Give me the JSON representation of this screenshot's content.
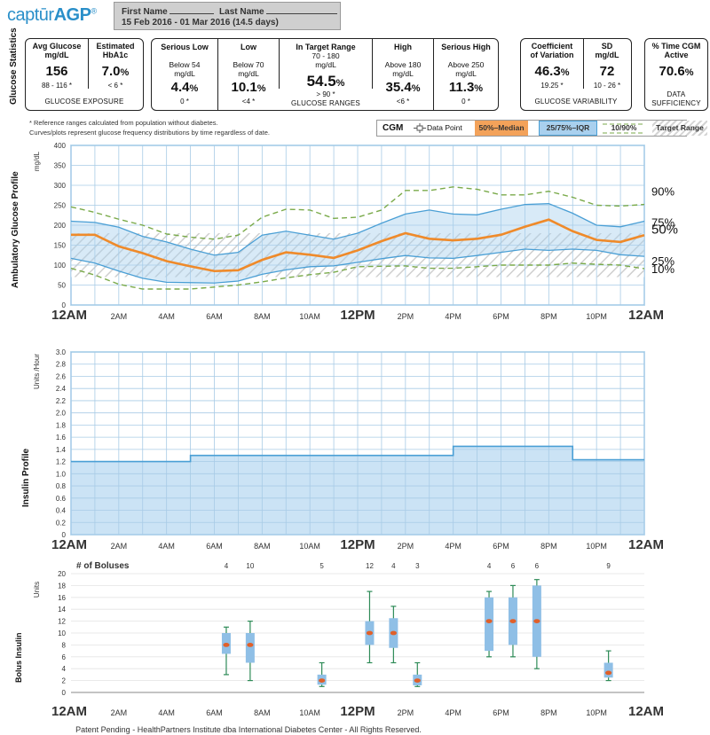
{
  "header": {
    "logo_prefix": "captūr",
    "logo_suffix": "AGP",
    "logo_mark": "®",
    "first_name_label": "First Name",
    "last_name_label": "Last Name",
    "date_range": "15 Feb 2016 - 01 Mar 2016  (14.5 days)"
  },
  "section_title": "Glucose Statistics",
  "glucose_exposure": {
    "avg_label": "Avg Glucose",
    "avg_unit": "mg/dL",
    "avg_value": "156",
    "avg_ref": "88 - 116 *",
    "a1c_label": "Estimated",
    "a1c_label2": "HbA1c",
    "a1c_value": "7.0",
    "a1c_unit": "%",
    "a1c_ref": "< 6 *",
    "footer": "GLUCOSE EXPOSURE"
  },
  "glucose_ranges": {
    "cols": [
      {
        "title": "Serious Low",
        "sub1": "Below 54",
        "sub2": "mg/dL",
        "value": "4.4",
        "unit": "%",
        "ref": "0 *"
      },
      {
        "title": "Low",
        "sub1": "Below 70",
        "sub2": "mg/dL",
        "value": "10.1",
        "unit": "%",
        "ref": "<4 *"
      },
      {
        "title": "In Target Range",
        "sub1": "70 - 180",
        "sub2": "mg/dL",
        "value": "54.5",
        "unit": "%",
        "ref": "> 90 *"
      },
      {
        "title": "High",
        "sub1": "Above 180",
        "sub2": "mg/dL",
        "value": "35.4",
        "unit": "%",
        "ref": "<6 *"
      },
      {
        "title": "Serious High",
        "sub1": "Above 250",
        "sub2": "mg/dL",
        "value": "11.3",
        "unit": "%",
        "ref": "0 *"
      }
    ],
    "footer": "GLUCOSE RANGES"
  },
  "glucose_variability": {
    "cv_label": "Coefficient",
    "cv_label2": "of Variation",
    "cv_value": "46.3",
    "cv_unit": "%",
    "cv_ref": "19.25 *",
    "sd_label": "SD",
    "sd_unit": "mg/dL",
    "sd_value": "72",
    "sd_ref": "10 - 26 *",
    "footer": "GLUCOSE VARIABILITY"
  },
  "data_sufficiency": {
    "label": "% Time CGM",
    "label2": "Active",
    "value": "70.6",
    "unit": "%",
    "footer": "DATA",
    "footer2": "SUFFICIENCY"
  },
  "footnote": {
    "line1": "* Reference ranges calculated from population without diabetes.",
    "line2": "Curves/plots represent glucose frequency distributions by time regardless of date."
  },
  "legend": {
    "cgm": "CGM",
    "data_point": "Data Point",
    "median": "50%–Median",
    "iqr": "25/75%–IQR",
    "p10_90": "10/90%",
    "target": "Target Range",
    "colors": {
      "median": "#ef8a2a",
      "iqr_fill": "#a9d0ee",
      "iqr_line": "#4a9fd5",
      "p10_90": "#7aaa4a",
      "median_bg": "#f3a25a"
    }
  },
  "panel_titles": {
    "agp": "Ambulatory Glucose Profile",
    "insulin": "Insulin Profile",
    "bolus1": "Bolus",
    "bolus2": "Insulin"
  },
  "footer": "Patent Pending -  HealthPartners Institute dba International Diabetes Center - All Rights Reserved.",
  "chart_data": [
    {
      "type": "line",
      "ylabel": "mg/dL",
      "ylim": [
        0,
        400
      ],
      "yticks": [
        0,
        50,
        100,
        150,
        200,
        250,
        300,
        350,
        400
      ],
      "target_range": [
        70,
        180
      ],
      "x_labels": [
        "12AM",
        "2AM",
        "4AM",
        "6AM",
        "8AM",
        "10AM",
        "12PM",
        "2PM",
        "4PM",
        "6PM",
        "8PM",
        "10PM",
        "12AM"
      ],
      "x_hours": [
        0,
        2,
        4,
        6,
        8,
        10,
        12,
        14,
        16,
        18,
        20,
        22,
        24
      ],
      "series": [
        {
          "name": "90%",
          "hours": [
            0,
            1,
            2,
            3,
            4,
            5,
            6,
            7,
            8,
            9,
            10,
            11,
            12,
            13,
            14,
            15,
            16,
            17,
            18,
            19,
            20,
            21,
            22,
            23,
            24
          ],
          "values": [
            246,
            232,
            215,
            200,
            178,
            170,
            165,
            175,
            220,
            240,
            238,
            217,
            220,
            238,
            287,
            287,
            296,
            290,
            276,
            276,
            285,
            270,
            250,
            248,
            252
          ]
        },
        {
          "name": "75%",
          "hours": [
            0,
            1,
            2,
            3,
            4,
            5,
            6,
            7,
            8,
            9,
            10,
            11,
            12,
            13,
            14,
            15,
            16,
            17,
            18,
            19,
            20,
            21,
            22,
            23,
            24
          ],
          "values": [
            210,
            207,
            195,
            172,
            158,
            140,
            125,
            132,
            175,
            185,
            175,
            165,
            180,
            205,
            228,
            238,
            228,
            226,
            240,
            252,
            254,
            230,
            200,
            196,
            210
          ]
        },
        {
          "name": "50%",
          "hours": [
            0,
            1,
            2,
            3,
            4,
            5,
            6,
            7,
            8,
            9,
            10,
            11,
            12,
            13,
            14,
            15,
            16,
            17,
            18,
            19,
            20,
            21,
            22,
            23,
            24
          ],
          "values": [
            176,
            176,
            147,
            130,
            110,
            97,
            85,
            87,
            113,
            132,
            126,
            118,
            137,
            160,
            180,
            166,
            162,
            166,
            176,
            196,
            214,
            185,
            163,
            158,
            175
          ]
        },
        {
          "name": "25%",
          "hours": [
            0,
            1,
            2,
            3,
            4,
            5,
            6,
            7,
            8,
            9,
            10,
            11,
            12,
            13,
            14,
            15,
            16,
            17,
            18,
            19,
            20,
            21,
            22,
            23,
            24
          ],
          "values": [
            117,
            105,
            85,
            67,
            57,
            56,
            55,
            60,
            77,
            88,
            96,
            98,
            107,
            116,
            124,
            118,
            117,
            124,
            132,
            140,
            137,
            140,
            137,
            126,
            122
          ]
        },
        {
          "name": "10%",
          "hours": [
            0,
            1,
            2,
            3,
            4,
            5,
            6,
            7,
            8,
            9,
            10,
            11,
            12,
            13,
            14,
            15,
            16,
            17,
            18,
            19,
            20,
            21,
            22,
            23,
            24
          ],
          "values": [
            92,
            75,
            52,
            40,
            40,
            40,
            45,
            50,
            58,
            68,
            76,
            82,
            96,
            97,
            98,
            92,
            92,
            96,
            100,
            100,
            100,
            105,
            102,
            100,
            91
          ]
        }
      ],
      "right_labels": [
        "90%",
        "75%",
        "50%",
        "25%",
        "10%"
      ]
    },
    {
      "type": "area",
      "ylabel": "Units /Hour",
      "ylim": [
        0,
        3.0
      ],
      "yticks": [
        "0",
        "0.2",
        "0.4",
        "0.6",
        "0.8",
        "1.0",
        "1.2",
        "1.4",
        "1.6",
        "1.8",
        "2.0",
        "2.2",
        "2.4",
        "2.6",
        "2.8",
        "3.0"
      ],
      "x_labels": [
        "12AM",
        "2AM",
        "4AM",
        "6AM",
        "8AM",
        "10AM",
        "12PM",
        "2PM",
        "4PM",
        "6PM",
        "8PM",
        "10PM",
        "12AM"
      ],
      "steps": [
        {
          "start": 0,
          "end": 5,
          "rate": 1.2
        },
        {
          "start": 5,
          "end": 16,
          "rate": 1.3
        },
        {
          "start": 16,
          "end": 21,
          "rate": 1.45
        },
        {
          "start": 21,
          "end": 24,
          "rate": 1.23
        }
      ]
    },
    {
      "type": "box",
      "title": "# of Boluses",
      "ylabel": "Units",
      "ylim": [
        0,
        20
      ],
      "yticks": [
        0,
        2,
        4,
        6,
        8,
        10,
        12,
        14,
        16,
        18,
        20
      ],
      "x_labels": [
        "12AM",
        "2AM",
        "4AM",
        "6AM",
        "8AM",
        "10AM",
        "12PM",
        "2PM",
        "4PM",
        "6PM",
        "8PM",
        "10PM",
        "12AM"
      ],
      "boxes": [
        {
          "hour": 6.5,
          "count": "4",
          "min": 3,
          "q1": 6.5,
          "median": 8,
          "q3": 10,
          "max": 11
        },
        {
          "hour": 7.5,
          "count": "10",
          "min": 2,
          "q1": 5,
          "median": 8,
          "q3": 10,
          "max": 12
        },
        {
          "hour": 10.5,
          "count": "5",
          "min": 1,
          "q1": 1.3,
          "median": 2,
          "q3": 3,
          "max": 5
        },
        {
          "hour": 12.5,
          "count": "12",
          "min": 5,
          "q1": 8,
          "median": 10,
          "q3": 12,
          "max": 17
        },
        {
          "hour": 13.5,
          "count": "4",
          "min": 5,
          "q1": 7.5,
          "median": 10,
          "q3": 12.5,
          "max": 14.5
        },
        {
          "hour": 14.5,
          "count": "3",
          "min": 1,
          "q1": 1.2,
          "median": 2,
          "q3": 3,
          "max": 5
        },
        {
          "hour": 17.5,
          "count": "4",
          "min": 6,
          "q1": 7,
          "median": 12,
          "q3": 16,
          "max": 17
        },
        {
          "hour": 18.5,
          "count": "6",
          "min": 6,
          "q1": 8,
          "median": 12,
          "q3": 16,
          "max": 18
        },
        {
          "hour": 19.5,
          "count": "6",
          "min": 4,
          "q1": 6,
          "median": 12,
          "q3": 18,
          "max": 19
        },
        {
          "hour": 22.5,
          "count": "9",
          "min": 2,
          "q1": 2.5,
          "median": 3.3,
          "q3": 5,
          "max": 7
        }
      ]
    }
  ]
}
